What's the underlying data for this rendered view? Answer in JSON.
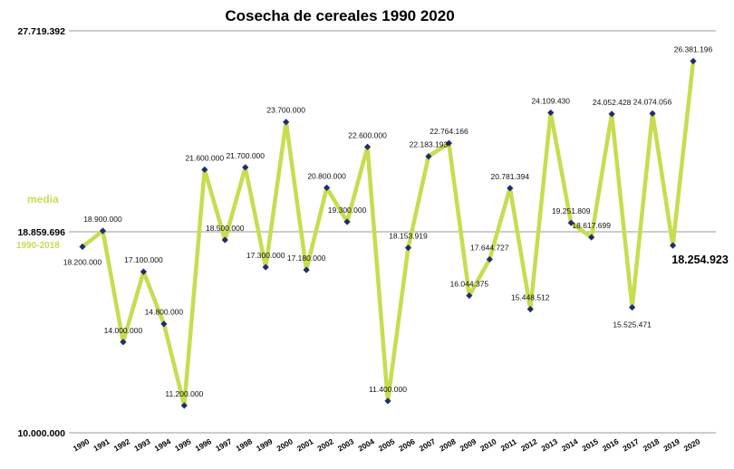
{
  "colors": {
    "line": "#c8dc50",
    "marker": "#1f2d6e",
    "mean_text": "#c8dc50",
    "gridline": "#9a9a9a"
  },
  "chart_data": {
    "type": "line",
    "title": "Cosecha de cereales 1990 2020",
    "xlabel": "",
    "ylabel": "",
    "ylim": [
      10000000,
      27719392
    ],
    "yticks": [
      {
        "value": 10000000,
        "label": "10.000.000"
      },
      {
        "value": 18859696,
        "label": "18.859.696"
      },
      {
        "value": 27719392,
        "label": "27.719.392"
      }
    ],
    "grid": "horizontal lines at y ticks",
    "legend": "none",
    "mean_line": {
      "value": 18859696,
      "label": "media",
      "sublabel": "1990-2018"
    },
    "categories": [
      "1990",
      "1991",
      "1992",
      "1993",
      "1994",
      "1995",
      "1996",
      "1997",
      "1998",
      "1999",
      "2000",
      "2001",
      "2002",
      "2003",
      "2004",
      "2005",
      "2006",
      "2007",
      "2008",
      "2009",
      "2010",
      "2011",
      "2012",
      "2013",
      "2014",
      "2015",
      "2016",
      "2017",
      "2018",
      "2019",
      "2020"
    ],
    "series": [
      {
        "values": [
          18200000,
          18900000,
          14000000,
          17100000,
          14800000,
          11200000,
          21600000,
          18500000,
          21700000,
          17300000,
          23700000,
          17180000,
          20800000,
          19300000,
          22600000,
          11400000,
          18153919,
          22183193,
          22764166,
          16044375,
          17644727,
          20781394,
          15448512,
          24109430,
          19251809,
          18617699,
          24052428,
          15525471,
          24074056,
          18254923,
          26381196
        ],
        "labels": [
          "18.200.000",
          "18.900.000",
          "14.000.000",
          "17.100.000",
          "14.800.000",
          "11.200.000",
          "21.600.000",
          "18.500.000",
          "21.700.000",
          "17.300.000",
          "23.700.000",
          "17.180.000",
          "20.800.000",
          "19.300.000",
          "22.600.000",
          "11.400.000",
          "18.153.919",
          "22.183.193",
          "22.764.166",
          "16.044.375",
          "17.644.727",
          "20.781.394",
          "15.448.512",
          "24.109.430",
          "19.251.809",
          "18.617.699",
          "24.052.428",
          "15.525.471",
          "24.074.056",
          "18.254.923",
          "26.381.196"
        ]
      }
    ]
  }
}
